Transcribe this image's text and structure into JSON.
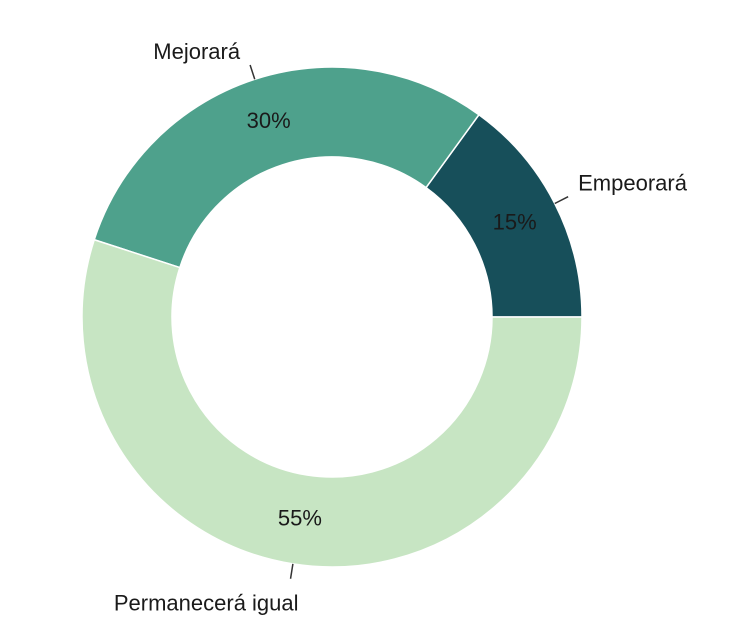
{
  "chart_data": {
    "type": "donut",
    "categories": [
      "Empeorará",
      "Mejorará",
      "Permanecerá igual"
    ],
    "values": [
      15,
      30,
      55
    ],
    "value_labels": [
      "15%",
      "30%",
      "55%"
    ],
    "colors": [
      "#174f5a",
      "#4ea18c",
      "#c7e5c3"
    ]
  }
}
